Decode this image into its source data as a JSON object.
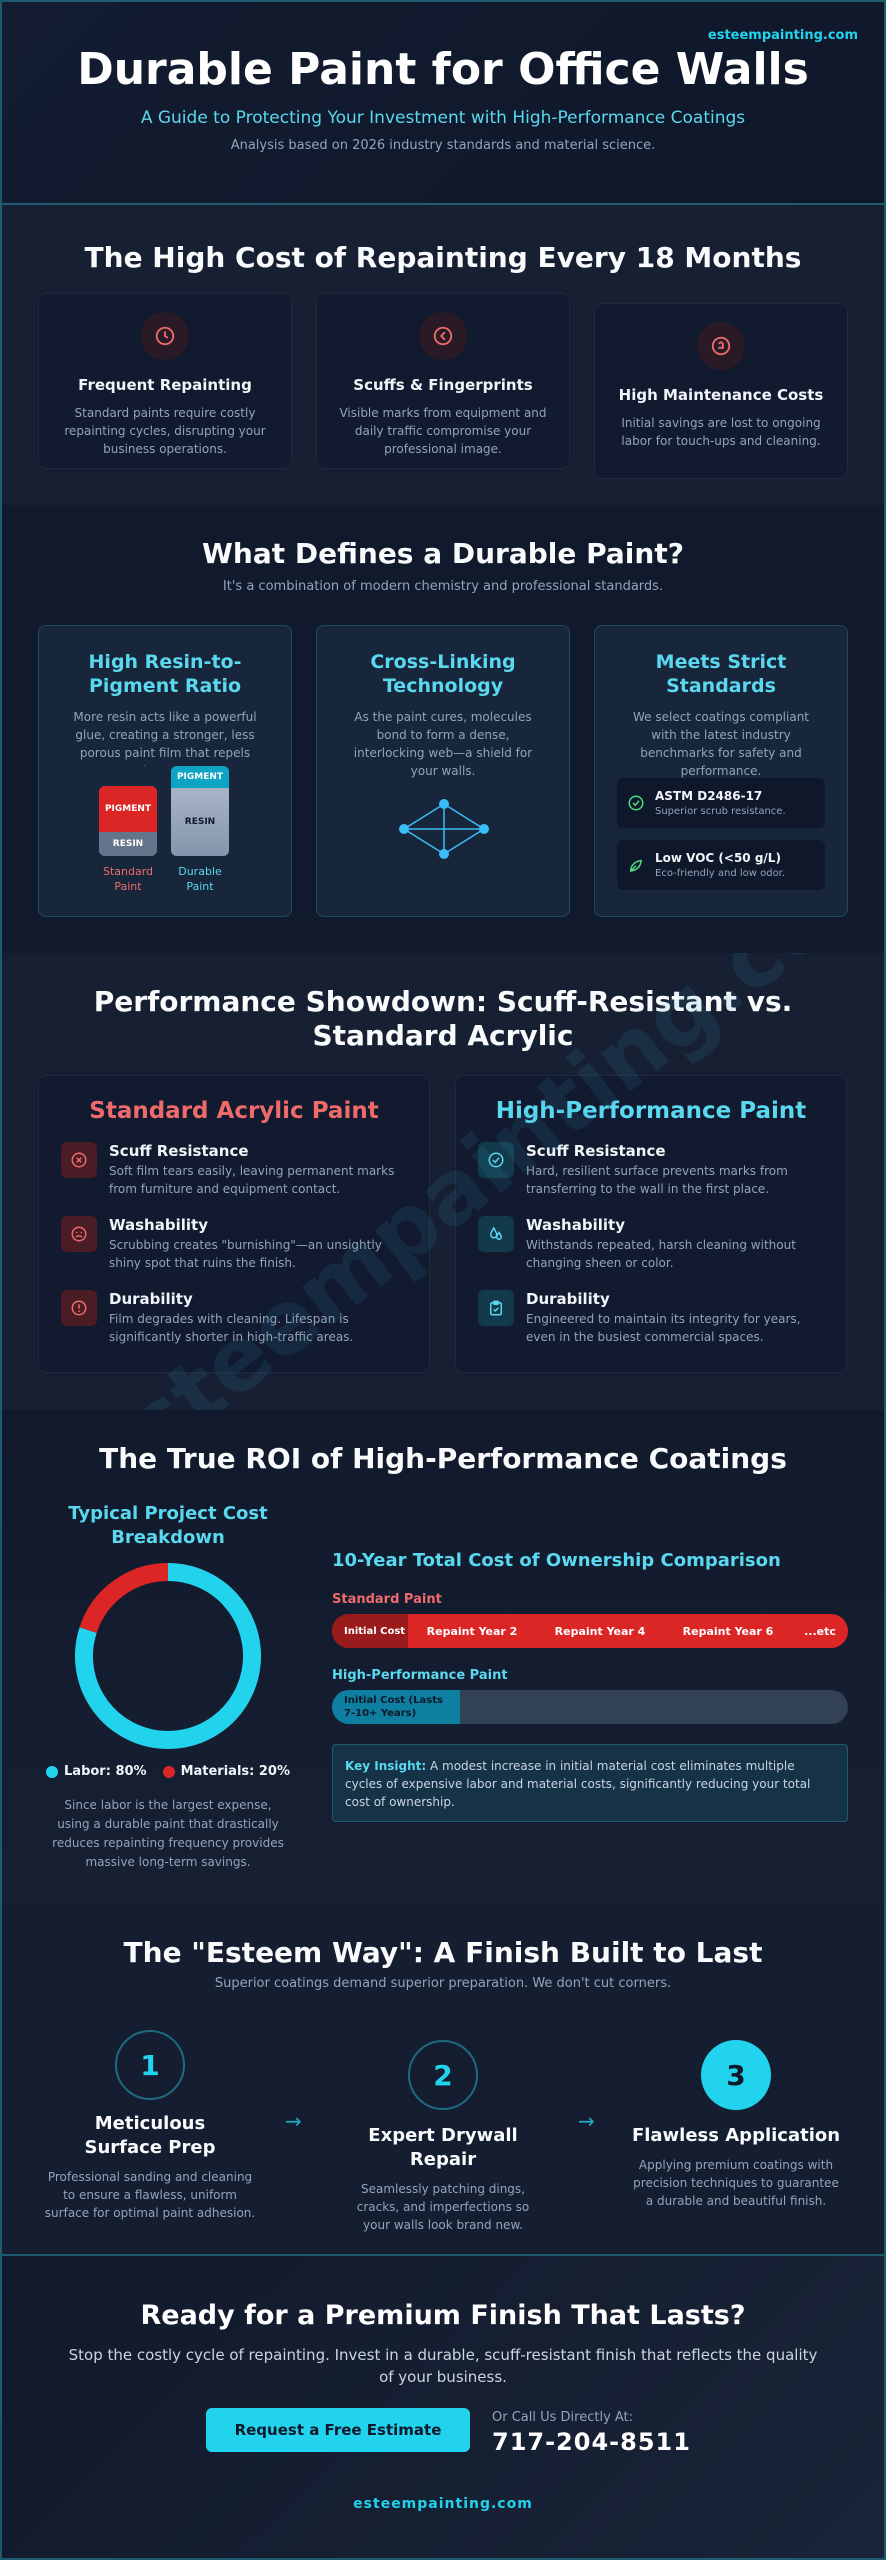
{
  "header": {
    "site": "esteempainting.com",
    "title": "Durable Paint for Office Walls",
    "subtitle": "A Guide to Protecting Your Investment with High-Performance Coatings",
    "note": "Analysis based on 2026 industry standards and material science."
  },
  "cost_section": {
    "title": "The High Cost of Repainting Every 18 Months",
    "cards": [
      {
        "icon": "clock-icon",
        "title": "Frequent Repainting",
        "text": "Standard paints require costly repainting cycles, disrupting your business operations."
      },
      {
        "icon": "fingerprint-icon",
        "title": "Scuffs & Fingerprints",
        "text": "Visible marks from equipment and daily traffic compromise your professional image."
      },
      {
        "icon": "coin-icon",
        "title": "High Maintenance Costs",
        "text": "Initial savings are lost to ongoing labor for touch-ups and cleaning."
      }
    ]
  },
  "defines_section": {
    "title": "What Defines a Durable Paint?",
    "subtitle": "It's a combination of modern chemistry and professional standards.",
    "cards": [
      {
        "title": "High Resin-to-Pigment Ratio",
        "text": "More resin acts like a powerful glue, creating a stronger, less porous paint film that repels damage."
      },
      {
        "title": "Cross-Linking Technology",
        "text": "As the paint cures, molecules bond to form a dense, interlocking web—a shield for your walls."
      },
      {
        "title": "Meets Strict Standards",
        "text": "We select coatings compliant with the latest industry benchmarks for safety and performance."
      }
    ],
    "cans": {
      "standard": {
        "pigment": "PIGMENT",
        "resin": "RESIN",
        "label": "Standard Paint"
      },
      "durable": {
        "pigment": "PIGMENT",
        "resin": "RESIN",
        "label": "Durable Paint"
      }
    },
    "standards": [
      {
        "title": "ASTM D2486-17",
        "text": "Superior scrub resistance."
      },
      {
        "title": "Low VOC (<50 g/L)",
        "text": "Eco-friendly and low odor."
      }
    ]
  },
  "showdown": {
    "title": "Performance Showdown: Scuff-Resistant vs. Standard Acrylic",
    "standard": {
      "heading": "Standard Acrylic Paint",
      "items": [
        {
          "icon": "x-circle-icon",
          "title": "Scuff Resistance",
          "text": "Soft film tears easily, leaving permanent marks from furniture and equipment contact."
        },
        {
          "icon": "sad-face-icon",
          "title": "Washability",
          "text": "Scrubbing creates \"burnishing\"—an unsightly shiny spot that ruins the finish."
        },
        {
          "icon": "alert-icon",
          "title": "Durability",
          "text": "Film degrades with cleaning. Lifespan is significantly shorter in high-traffic areas."
        }
      ]
    },
    "high": {
      "heading": "High-Performance Paint",
      "items": [
        {
          "icon": "check-circle-icon",
          "title": "Scuff Resistance",
          "text": "Hard, resilient surface prevents marks from transferring to the wall in the first place."
        },
        {
          "icon": "droplets-icon",
          "title": "Washability",
          "text": "Withstands repeated, harsh cleaning without changing sheen or color."
        },
        {
          "icon": "clipboard-check-icon",
          "title": "Durability",
          "text": "Engineered to maintain its integrity for years, even in the busiest commercial spaces."
        }
      ]
    },
    "watermark": "esteempainting.com"
  },
  "roi": {
    "title": "The True ROI of High-Performance Coatings",
    "donut_title": "Typical Project Cost Breakdown",
    "legend": [
      {
        "label": "Labor: 80%",
        "color": "#22d3ee",
        "value": 80
      },
      {
        "label": "Materials: 20%",
        "color": "#dc2626",
        "value": 20
      }
    ],
    "donut_note": "Since labor is the largest expense, using a durable paint that drastically reduces repainting frequency provides massive long-term savings.",
    "tco_title": "10-Year Total Cost of Ownership Comparison",
    "standard_label": "Standard Paint",
    "standard_segments": [
      "Initial Cost",
      "Repaint Year 2",
      "Repaint Year 4",
      "Repaint Year 6",
      "...etc"
    ],
    "high_label": "High-Performance Paint",
    "high_segment": "Initial Cost (Lasts 7-10+ Years)",
    "insight_label": "Key Insight:",
    "insight_text": "A modest increase in initial material cost eliminates multiple cycles of expensive labor and material costs, significantly reducing your total cost of ownership."
  },
  "esteem": {
    "title": "The \"Esteem Way\": A Finish Built to Last",
    "subtitle": "Superior coatings demand superior preparation. We don't cut corners.",
    "steps": [
      {
        "num": "1",
        "title": "Meticulous Surface Prep",
        "text": "Professional sanding and cleaning to ensure a flawless, uniform surface for optimal paint adhesion."
      },
      {
        "num": "2",
        "title": "Expert Drywall Repair",
        "text": "Seamlessly patching dings, cracks, and imperfections so your walls look brand new."
      },
      {
        "num": "3",
        "title": "Flawless Application",
        "text": "Applying premium coatings with precision techniques to guarantee a durable and beautiful finish."
      }
    ],
    "arrow": "→"
  },
  "cta": {
    "title": "Ready for a Premium Finish That Lasts?",
    "text": "Stop the costly cycle of repainting. Invest in a durable, scuff-resistant finish that reflects the quality of your business.",
    "button": "Request a Free Estimate",
    "call_label": "Or Call Us Directly At:",
    "phone": "717-204-8511",
    "footer": "esteempainting.com"
  }
}
